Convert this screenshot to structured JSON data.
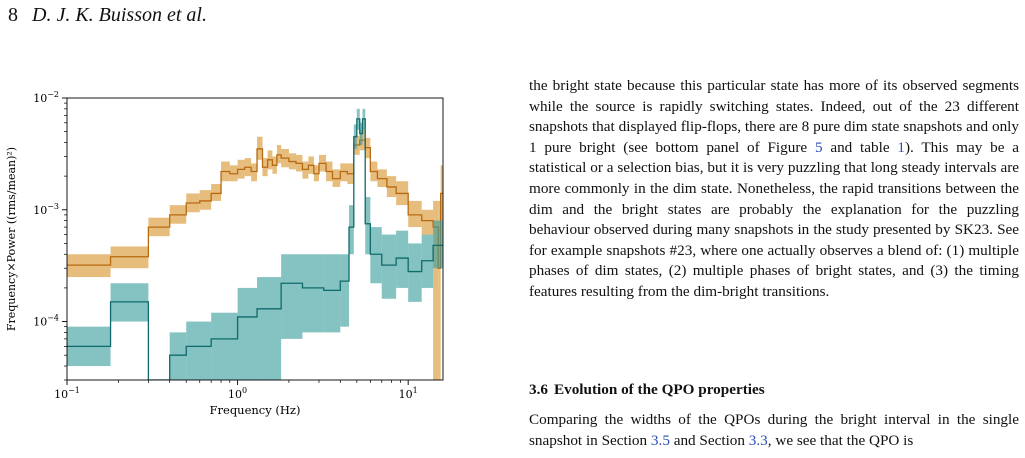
{
  "running_head": {
    "page_number": "8",
    "authors": "D. J. K. Buisson et al."
  },
  "figure": {
    "colors": {
      "bright": "#d9952e",
      "bright_line": "#b86a10",
      "dim": "#3a9c9c",
      "dim_line": "#0f6b6b"
    },
    "chart_data": {
      "type": "line",
      "xlabel": "Frequency (Hz)",
      "ylabel": "Frequency×Power ((rms/mean)²)",
      "xscale": "log",
      "yscale": "log",
      "xlim": [
        0.1,
        16
      ],
      "ylim": [
        3e-05,
        0.01
      ],
      "x_ticks": [
        {
          "value": 0.1,
          "base": "10",
          "exp": "−1"
        },
        {
          "value": 1,
          "base": "10",
          "exp": "0"
        },
        {
          "value": 10,
          "base": "10",
          "exp": "1"
        }
      ],
      "y_ticks": [
        {
          "value": 0.0001,
          "base": "10",
          "exp": "−4"
        },
        {
          "value": 0.001,
          "base": "10",
          "exp": "−3"
        },
        {
          "value": 0.01,
          "base": "10",
          "exp": "−2"
        }
      ],
      "grid": false,
      "series": [
        {
          "color": "#d9952e",
          "edges": [
            0.1,
            0.18,
            0.3,
            0.4,
            0.5,
            0.6,
            0.7,
            0.8,
            0.9,
            1.0,
            1.1,
            1.2,
            1.3,
            1.4,
            1.5,
            1.6,
            1.7,
            1.8,
            2.0,
            2.2,
            2.4,
            2.6,
            2.8,
            3.0,
            3.3,
            3.6,
            4.0,
            4.4,
            4.8,
            5.2,
            5.6,
            6.0,
            6.6,
            7.5,
            8.5,
            10.0,
            12.0,
            14.0,
            15.0,
            15.5,
            16.0
          ],
          "values": [
            0.00032,
            0.00038,
            0.0007,
            0.0009,
            0.00115,
            0.0012,
            0.0014,
            0.0022,
            0.0021,
            0.0023,
            0.0024,
            0.0022,
            0.0035,
            0.0024,
            0.0028,
            0.0025,
            0.0031,
            0.0029,
            0.0027,
            0.0026,
            0.0023,
            0.0025,
            0.0021,
            0.0026,
            0.0022,
            0.0019,
            0.0022,
            0.0021,
            0.0038,
            0.0042,
            0.0036,
            0.0022,
            0.0019,
            0.0016,
            0.0014,
            0.0009,
            0.0008,
            0.0007,
            0.0003,
            0.0014
          ],
          "lower": [
            0.00025,
            0.0003,
            0.00058,
            0.00075,
            0.00095,
            0.001,
            0.0012,
            0.0018,
            0.0018,
            0.0019,
            0.002,
            0.0018,
            0.0028,
            0.002,
            0.0023,
            0.0021,
            0.0026,
            0.0024,
            0.0023,
            0.0022,
            0.0019,
            0.0021,
            0.0018,
            0.0022,
            0.0018,
            0.0016,
            0.0018,
            0.0017,
            0.0031,
            0.0034,
            0.0029,
            0.0018,
            0.0016,
            0.0013,
            0.0011,
            0.0007,
            0.0006,
            3e-05,
            3e-05,
            0.0008
          ],
          "upper": [
            0.0004,
            0.00047,
            0.00085,
            0.0011,
            0.0014,
            0.0015,
            0.0017,
            0.0027,
            0.0025,
            0.0028,
            0.0029,
            0.0026,
            0.0045,
            0.0029,
            0.0034,
            0.003,
            0.0038,
            0.0035,
            0.0032,
            0.0031,
            0.0027,
            0.003,
            0.0025,
            0.0031,
            0.0027,
            0.0023,
            0.0026,
            0.0026,
            0.0046,
            0.0052,
            0.0044,
            0.0027,
            0.0023,
            0.002,
            0.0018,
            0.0012,
            0.001,
            0.0012,
            0.0012,
            0.0025
          ]
        },
        {
          "color": "#3a9c9c",
          "edges": [
            0.1,
            0.18,
            0.3,
            0.4,
            0.5,
            0.7,
            1.0,
            1.3,
            1.8,
            2.4,
            3.2,
            4.0,
            4.5,
            4.8,
            5.0,
            5.2,
            5.4,
            5.6,
            6.0,
            7.0,
            8.5,
            10.0,
            12.0,
            14.0,
            16.0
          ],
          "values": [
            6e-05,
            0.00015,
            3e-05,
            5e-05,
            6e-05,
            7e-05,
            0.00011,
            0.00013,
            0.00022,
            0.0002,
            0.00019,
            0.00023,
            0.0007,
            0.0045,
            0.0065,
            0.0048,
            0.0065,
            0.00075,
            0.0004,
            0.00032,
            0.00037,
            0.00028,
            0.00035,
            0.00048
          ],
          "lower": [
            4e-05,
            0.0001,
            3e-05,
            3e-05,
            3e-05,
            3e-05,
            3e-05,
            3e-05,
            7e-05,
            8e-05,
            8e-05,
            9e-05,
            0.0004,
            0.0035,
            0.0052,
            0.0038,
            0.0052,
            0.0004,
            0.00022,
            0.00016,
            0.0002,
            0.00015,
            0.0002,
            0.0003
          ],
          "upper": [
            9e-05,
            0.00022,
            3e-05,
            8e-05,
            0.0001,
            0.00012,
            0.0002,
            0.00025,
            0.0004,
            0.0004,
            0.0004,
            0.0004,
            0.0011,
            0.0058,
            0.008,
            0.006,
            0.008,
            0.0013,
            0.0007,
            0.0006,
            0.00065,
            0.0005,
            0.0006,
            0.0008
          ]
        }
      ]
    }
  },
  "body": {
    "p1_a": "the bright state because this particular state has more of its observed segments while the source is rapidly switching states. Indeed, out of the 23 different snapshots that displayed flip-flops, there are 8 pure dim state snapshots and only 1 pure bright (see bottom panel of Figure ",
    "p1_ref1": "5",
    "p1_b": " and table ",
    "p1_ref2": "1",
    "p1_c": "). This may be a statistical or a selection bias, but it is very puzzling that long steady intervals are more commonly in the dim state. Nonetheless, the rapid transitions between the dim and the bright states are probably the explanation for the puzzling behaviour observed during many snapshots in the study presented by SK23. See for example snapshots #23, where one actually observes a blend of: (1) multiple phases of dim states, (2) multiple phases of bright states, and (3) the timing features resulting from the dim-bright transitions.",
    "section_number": "3.6",
    "section_title": "Evolution of the QPO properties",
    "p2_a": "Comparing the widths of the QPOs during the bright interval in the single snapshot in Section ",
    "p2_ref1": "3.5",
    "p2_b": " and Section ",
    "p2_ref2": "3.3",
    "p2_c": ", we see that the QPO is"
  }
}
